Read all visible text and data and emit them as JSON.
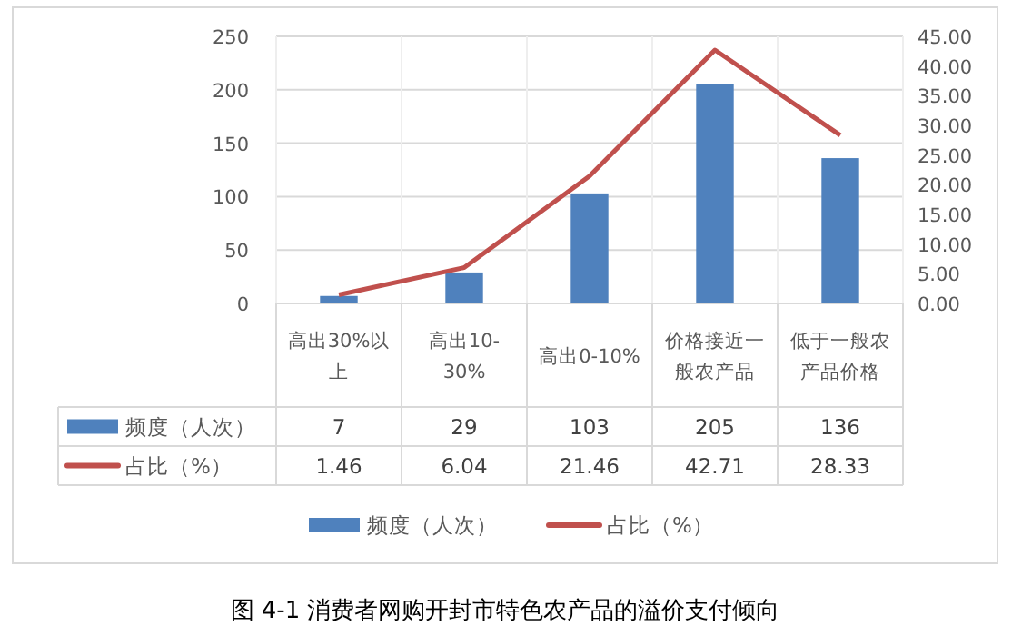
{
  "chart_data": {
    "type": "bar",
    "title": "图 4-1 消费者网购开封市特色农产品的溢价支付倾向",
    "categories": [
      "高出30%以上",
      "高出10-30%",
      "高出0-10%",
      "价格接近一般农产品",
      "低于一般农产品价格"
    ],
    "series": [
      {
        "name": "频度（人次）",
        "color": "#4f81bd",
        "values": [
          7,
          29,
          103,
          205,
          136
        ]
      },
      {
        "name": "占比（%）",
        "type": "line",
        "axis": "y2",
        "color": "#c0504d",
        "values": [
          1.46,
          6.04,
          21.46,
          42.71,
          28.33
        ]
      }
    ],
    "ylim": [
      0,
      250
    ],
    "yticks": [
      0,
      50,
      100,
      150,
      200,
      250
    ],
    "y2lim": [
      0,
      45
    ],
    "y2ticks": [
      {
        "value": 0,
        "label": "0.00"
      },
      {
        "value": 5,
        "label": "5.00"
      },
      {
        "value": 10,
        "label": "10.00"
      },
      {
        "value": 15,
        "label": "15.00"
      },
      {
        "value": 20,
        "label": "20.00"
      },
      {
        "value": 25,
        "label": "25.00"
      },
      {
        "value": 30,
        "label": "30.00"
      },
      {
        "value": 35,
        "label": "35.00"
      },
      {
        "value": 40,
        "label": "40.00"
      },
      {
        "value": 45,
        "label": "45.00"
      }
    ],
    "data_labels": true,
    "grid": true,
    "legend": "bottom",
    "marker": "none",
    "line_style": "solid"
  }
}
